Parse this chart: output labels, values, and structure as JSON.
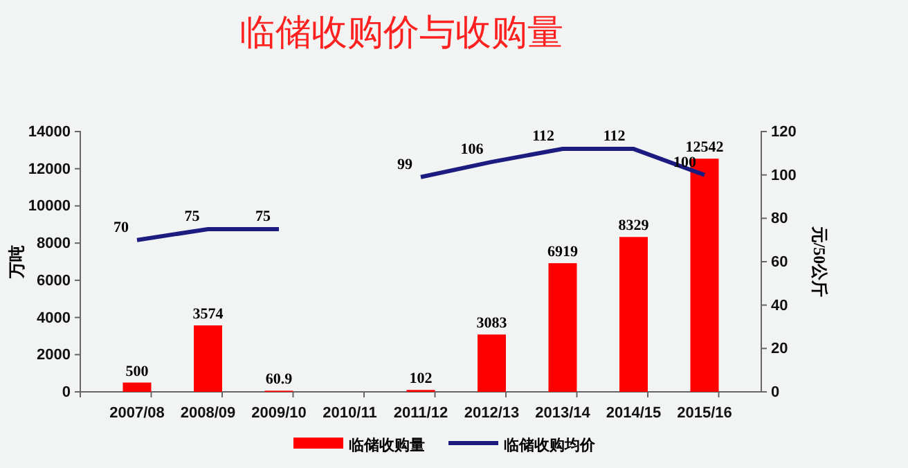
{
  "chart_data": {
    "type": "bar",
    "title": "临储收购价与收购量",
    "ylabel": "万吨",
    "y2label": "元/50公斤",
    "categories": [
      "2007/08",
      "2008/09",
      "2009/10",
      "2010/11",
      "2011/12",
      "2012/13",
      "2013/14",
      "2014/15",
      "2015/16"
    ],
    "series": [
      {
        "name": "临储收购量",
        "color": "#ff0000",
        "values": [
          500,
          3574,
          60.9,
          null,
          102,
          3083,
          6919,
          8329,
          12542
        ]
      },
      {
        "name": "临储收购均价",
        "type": "line",
        "axis": "y2",
        "color": "#1c1c80",
        "values": [
          70,
          75,
          75,
          null,
          99,
          106,
          112,
          112,
          100
        ]
      }
    ],
    "ylim": [
      0,
      14000
    ],
    "yticks": [
      0,
      2000,
      4000,
      6000,
      8000,
      10000,
      12000,
      14000
    ],
    "y2lim": [
      0,
      120
    ],
    "y2ticks": [
      0,
      20,
      40,
      60,
      80,
      100,
      120
    ],
    "data_labels": true,
    "legend": "bottom",
    "grid": false,
    "marker": "none"
  }
}
